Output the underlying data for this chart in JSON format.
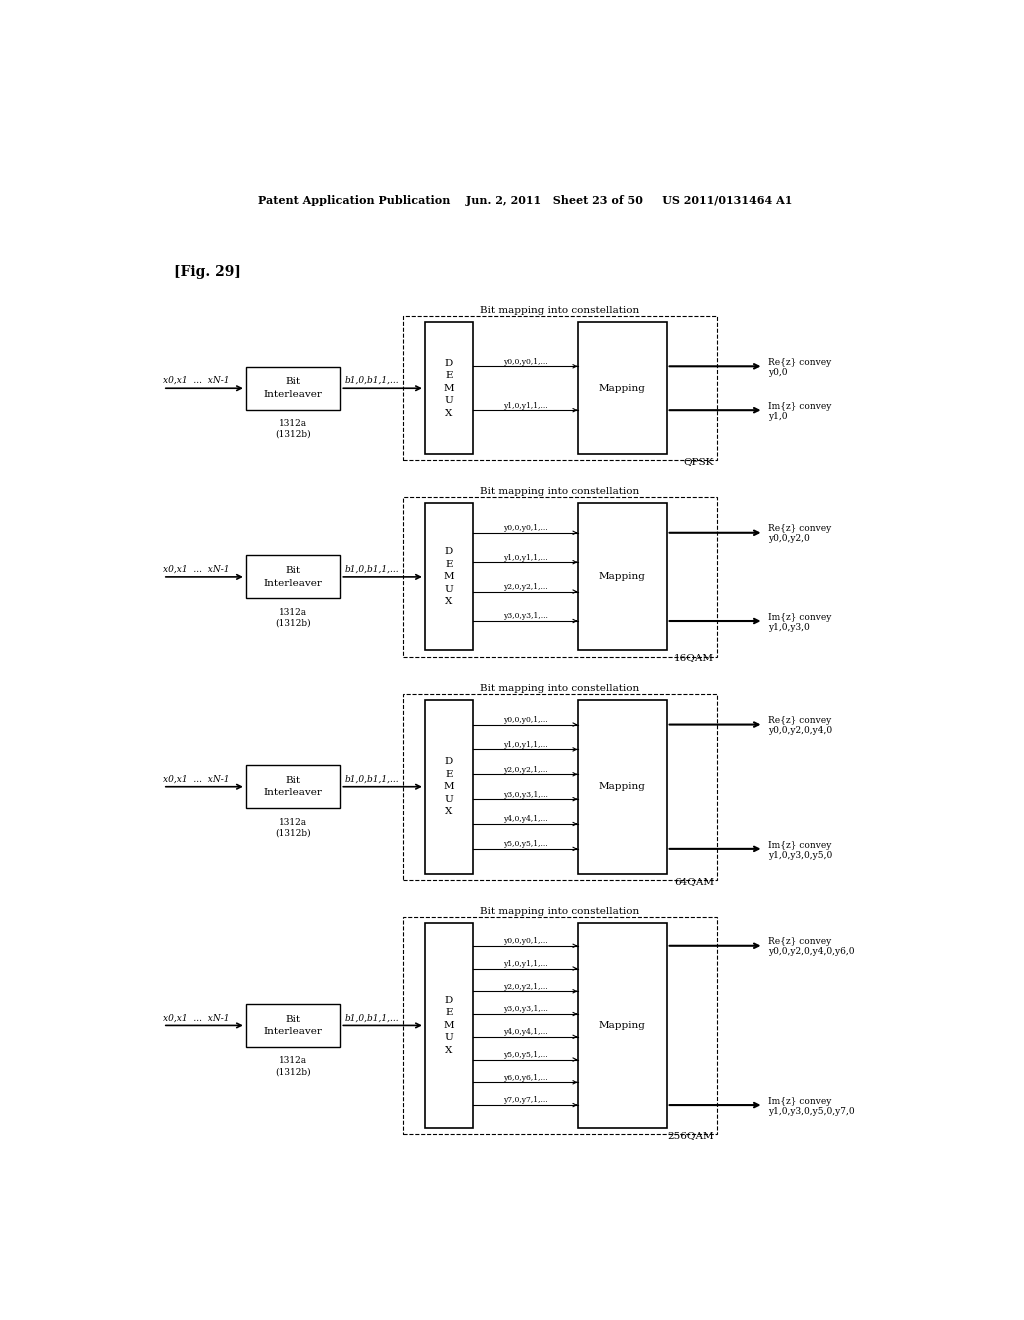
{
  "background_color": "#ffffff",
  "header": "Patent Application Publication    Jun. 2, 2011   Sheet 23 of 50     US 2011/0131464 A1",
  "fig_label": "[Fig. 29]",
  "diagrams": [
    {
      "modulation": "QPSK",
      "demux_outputs": [
        "y0,0,y0,1,...",
        "y1,0,y1,1,..."
      ],
      "re_convey_line1": "Re{z} convey",
      "re_convey_line2": "y0,0",
      "im_convey_line1": "Im{z} convey",
      "im_convey_line2": "y1,0"
    },
    {
      "modulation": "16QAM",
      "demux_outputs": [
        "y0,0,y0,1,...",
        "y1,0,y1,1,...",
        "y2,0,y2,1,...",
        "y3,0,y3,1,..."
      ],
      "re_convey_line1": "Re{z} convey",
      "re_convey_line2": "y0,0,y2,0",
      "im_convey_line1": "Im{z} convey",
      "im_convey_line2": "y1,0,y3,0"
    },
    {
      "modulation": "64QAM",
      "demux_outputs": [
        "y0,0,y0,1,...",
        "y1,0,y1,1,...",
        "y2,0,y2,1,...",
        "y3,0,y3,1,...",
        "y4,0,y4,1,...",
        "y5,0,y5,1,..."
      ],
      "re_convey_line1": "Re{z} convey",
      "re_convey_line2": "y0,0,y2,0,y4,0",
      "im_convey_line1": "Im{z} convey",
      "im_convey_line2": "y1,0,y3,0,y5,0"
    },
    {
      "modulation": "256QAM",
      "demux_outputs": [
        "y0,0,y0,1,...",
        "y1,0,y1,1,...",
        "y2,0,y2,1,...",
        "y3,0,y3,1,...",
        "y4,0,y4,1,...",
        "y5,0,y5,1,...",
        "y6,0,y6,1,...",
        "y7,0,y7,1,..."
      ],
      "re_convey_line1": "Re{z} convey",
      "re_convey_line2": "y0,0,y2,0,y4,0,y6,0",
      "im_convey_line1": "Im{z} convey",
      "im_convey_line2": "y1,0,y3,0,y5,0,y7,0"
    }
  ]
}
